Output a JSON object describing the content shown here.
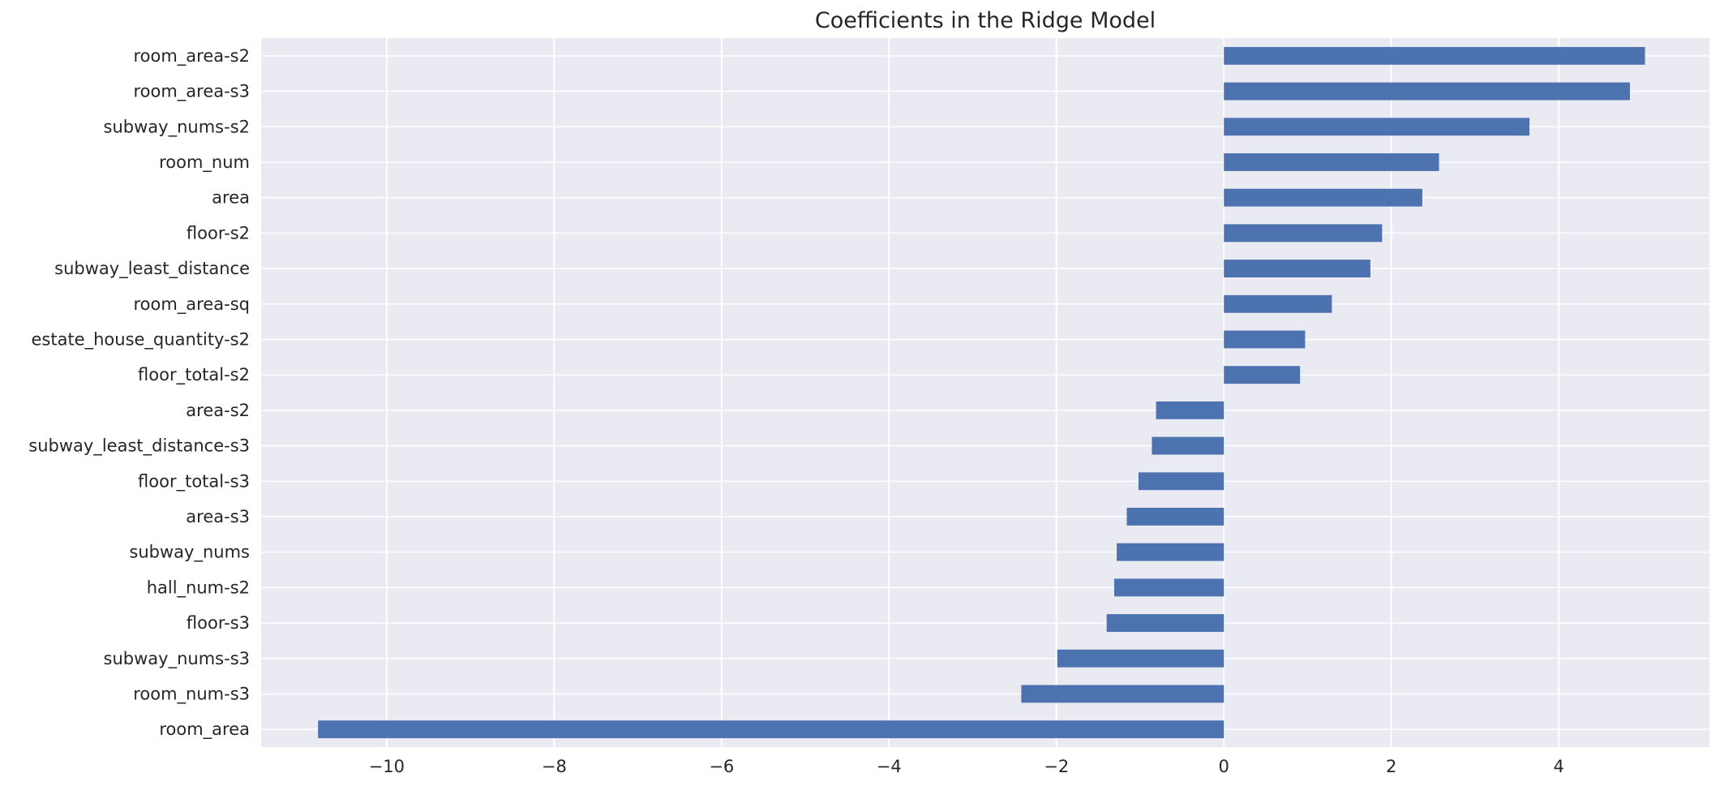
{
  "chart_data": {
    "type": "bar",
    "orientation": "horizontal",
    "title": "Coefficients in the Ridge Model",
    "xlabel": "",
    "ylabel": "",
    "xlim": [
      -11.5,
      5.8
    ],
    "xticks": [
      -10,
      -8,
      -6,
      -4,
      -2,
      0,
      2,
      4
    ],
    "xtick_labels": [
      "−10",
      "−8",
      "−6",
      "−4",
      "−2",
      "0",
      "2",
      "4"
    ],
    "grid": true,
    "bar_color": "#4c72b0",
    "background_color": "#eaeaf2",
    "grid_color": "#ffffff",
    "categories": [
      "room_area-s2",
      "room_area-s3",
      "subway_nums-s2",
      "room_num",
      "area",
      "floor-s2",
      "subway_least_distance",
      "room_area-sq",
      "estate_house_quantity-s2",
      "floor_total-s2",
      "area-s2",
      "subway_least_distance-s3",
      "floor_total-s3",
      "area-s3",
      "subway_nums",
      "hall_num-s2",
      "floor-s3",
      "subway_nums-s3",
      "room_num-s3",
      "room_area"
    ],
    "values": [
      5.03,
      4.85,
      3.65,
      2.57,
      2.37,
      1.89,
      1.75,
      1.29,
      0.97,
      0.91,
      -0.81,
      -0.86,
      -1.02,
      -1.16,
      -1.28,
      -1.31,
      -1.4,
      -1.99,
      -2.42,
      -10.82
    ]
  }
}
